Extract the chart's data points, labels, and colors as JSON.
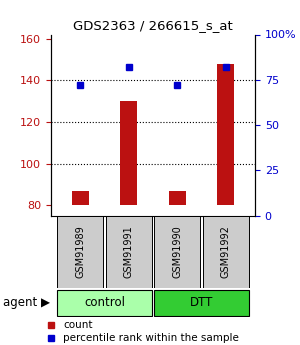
{
  "title": "GDS2363 / 266615_s_at",
  "samples": [
    "GSM91989",
    "GSM91991",
    "GSM91990",
    "GSM91992"
  ],
  "count_values": [
    87,
    130,
    87,
    148
  ],
  "percentile_values": [
    72,
    82,
    72,
    82
  ],
  "ylim_left": [
    75,
    162
  ],
  "ylim_right": [
    0,
    100
  ],
  "yticks_left": [
    80,
    100,
    120,
    140,
    160
  ],
  "yticks_right": [
    0,
    25,
    50,
    75,
    100
  ],
  "ytick_labels_right": [
    "0",
    "25",
    "50",
    "75",
    "100%"
  ],
  "bar_color": "#bb1111",
  "dot_color": "#0000cc",
  "bar_bottom": 80,
  "control_color": "#aaffaa",
  "dtt_color": "#33cc33",
  "sample_box_color": "#cccccc",
  "legend_count_label": "count",
  "legend_pct_label": "percentile rank within the sample"
}
